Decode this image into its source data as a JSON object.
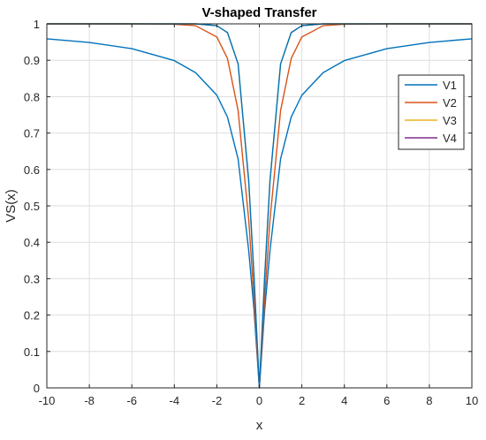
{
  "chart_data": {
    "type": "line",
    "title": "V-shaped Transfer",
    "xlabel": "x",
    "ylabel": "VS(x)",
    "xlim": [
      -10,
      10
    ],
    "ylim": [
      0,
      1
    ],
    "xticks": [
      "-10",
      "-8",
      "-6",
      "-4",
      "-2",
      "0",
      "2",
      "4",
      "6",
      "8",
      "10"
    ],
    "yticks": [
      "0",
      "0.1",
      "0.2",
      "0.3",
      "0.4",
      "0.5",
      "0.6",
      "0.7",
      "0.8",
      "0.9",
      "1"
    ],
    "grid": true,
    "legend_position": "top-right",
    "x": [
      -10,
      -8,
      -6,
      -4,
      -3,
      -2,
      -1.5,
      -1,
      -0.5,
      -0.25,
      0,
      0.25,
      0.5,
      1,
      1.5,
      2,
      3,
      4,
      6,
      8,
      10
    ],
    "series": [
      {
        "name": "V1",
        "color": "#0072BD",
        "values": [
          1,
          1,
          1,
          1,
          1,
          0.995,
          0.976,
          0.89,
          0.568,
          0.305,
          0,
          0.305,
          0.568,
          0.89,
          0.976,
          0.995,
          1,
          1,
          1,
          1,
          1
        ]
      },
      {
        "name": "V2",
        "color": "#D95319",
        "values": [
          1,
          1,
          1,
          0.999,
          0.995,
          0.964,
          0.905,
          0.762,
          0.462,
          0.245,
          0,
          0.245,
          0.462,
          0.762,
          0.905,
          0.964,
          0.995,
          0.999,
          1,
          1,
          1
        ]
      },
      {
        "name": "V3",
        "color": "#EDB120",
        "values": [
          1,
          1,
          1,
          1,
          1,
          0.995,
          0.976,
          0.89,
          0.568,
          0.305,
          0,
          0.305,
          0.568,
          0.89,
          0.976,
          0.995,
          1,
          1,
          1,
          1,
          1
        ]
      },
      {
        "name": "V4",
        "color": "#7E2F8E",
        "values": [
          0.959,
          0.949,
          0.932,
          0.899,
          0.866,
          0.804,
          0.744,
          0.629,
          0.377,
          0.213,
          0,
          0.213,
          0.377,
          0.629,
          0.744,
          0.804,
          0.866,
          0.899,
          0.932,
          0.949,
          0.959
        ],
        "display_color": "#0072BD"
      }
    ]
  }
}
